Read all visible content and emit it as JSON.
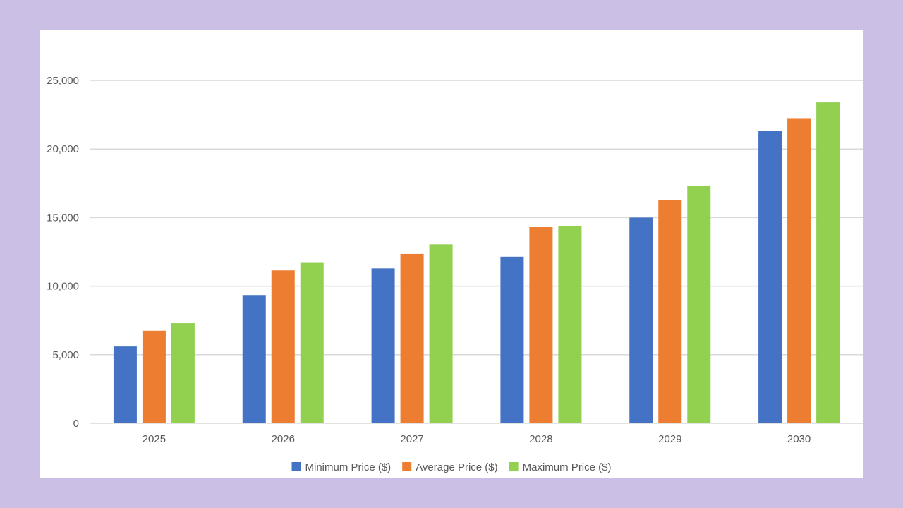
{
  "chart_data": {
    "type": "bar",
    "title": "",
    "xlabel": "",
    "ylabel": "",
    "categories": [
      "2025",
      "2026",
      "2027",
      "2028",
      "2029",
      "2030"
    ],
    "series": [
      {
        "name": "Minimum Price ($)",
        "color": "#4472c4",
        "values": [
          5600,
          9350,
          11300,
          12150,
          15000,
          21300
        ]
      },
      {
        "name": "Average Price ($)",
        "color": "#ed7d31",
        "values": [
          6750,
          11150,
          12350,
          14300,
          16300,
          22250
        ]
      },
      {
        "name": "Maximum Price ($)",
        "color": "#92d050",
        "values": [
          7300,
          11700,
          13050,
          14400,
          17300,
          23400
        ]
      }
    ],
    "ylim": [
      0,
      25000
    ],
    "yticks": [
      0,
      5000,
      10000,
      15000,
      20000,
      25000
    ],
    "ytick_labels": [
      "0",
      "5,000",
      "10,000",
      "15,000",
      "20,000",
      "25,000"
    ],
    "grid": true,
    "legend_position": "bottom"
  },
  "colors": {
    "page_background": "#cbbfe5",
    "plot_background": "#ffffff",
    "gridline": "#d9d9d9",
    "axis_text": "#595959"
  }
}
